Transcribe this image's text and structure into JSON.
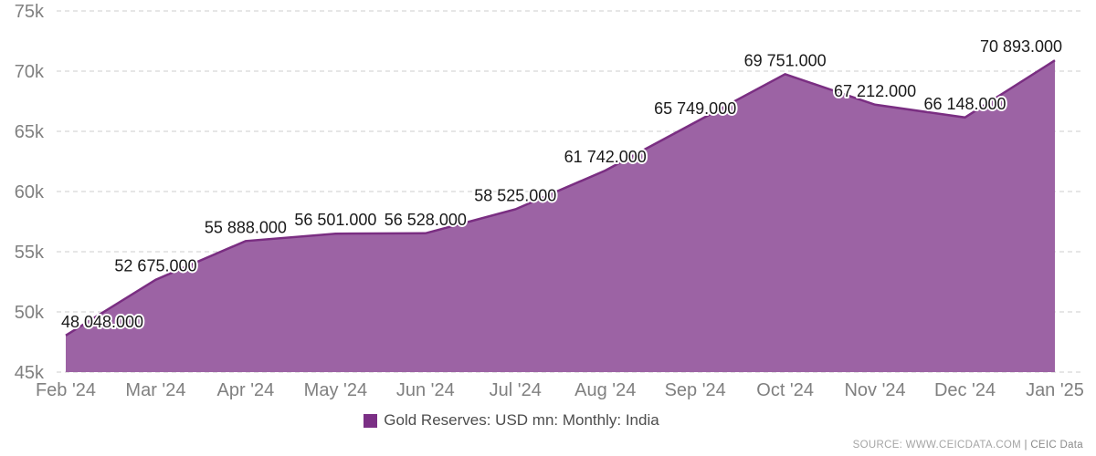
{
  "chart_data": {
    "type": "area",
    "title": "Gold Reserves: USD mn: Monthly: India",
    "categories": [
      "Feb '24",
      "Mar '24",
      "Apr '24",
      "May '24",
      "Jun '24",
      "Jul '24",
      "Aug '24",
      "Sep '24",
      "Oct '24",
      "Nov '24",
      "Dec '24",
      "Jan '25"
    ],
    "values": [
      48048,
      52675,
      55888,
      56501,
      56528,
      58525,
      61742,
      65749,
      69751,
      67212,
      66148,
      70893
    ],
    "point_labels": [
      "48 048.000",
      "52 675.000",
      "55 888.000",
      "56 501.000",
      "56 528.000",
      "58 525.000",
      "61 742.000",
      "65 749.000",
      "69 751.000",
      "67 212.000",
      "66 148.000",
      "70 893.000"
    ],
    "y_ticks": [
      {
        "value": 45000,
        "label": "45k"
      },
      {
        "value": 50000,
        "label": "50k"
      },
      {
        "value": 55000,
        "label": "55k"
      },
      {
        "value": 60000,
        "label": "60k"
      },
      {
        "value": 65000,
        "label": "65k"
      },
      {
        "value": 70000,
        "label": "70k"
      },
      {
        "value": 75000,
        "label": "75k"
      }
    ],
    "ylim": [
      45000,
      75000
    ],
    "grid": "dashed-horizontal",
    "legend_position": "bottom-center",
    "area_color": "#9c63a4",
    "line_color": "#7a2e82",
    "layout": {
      "plot_left": 72,
      "plot_right": 1155,
      "plot_top": 12,
      "plot_bottom": 408,
      "grid_left": 62,
      "grid_right": 1185,
      "xlabel_baseline": 434,
      "label_clamp_min": 112,
      "label_clamp_max": 1118
    }
  },
  "legend": {
    "label": "Gold Reserves: USD mn: Monthly: India",
    "swatch_color": "#7b2f85"
  },
  "source": {
    "prefix": "SOURCE: WWW.CEICDATA.COM ",
    "suffix": "| CEIC Data"
  }
}
